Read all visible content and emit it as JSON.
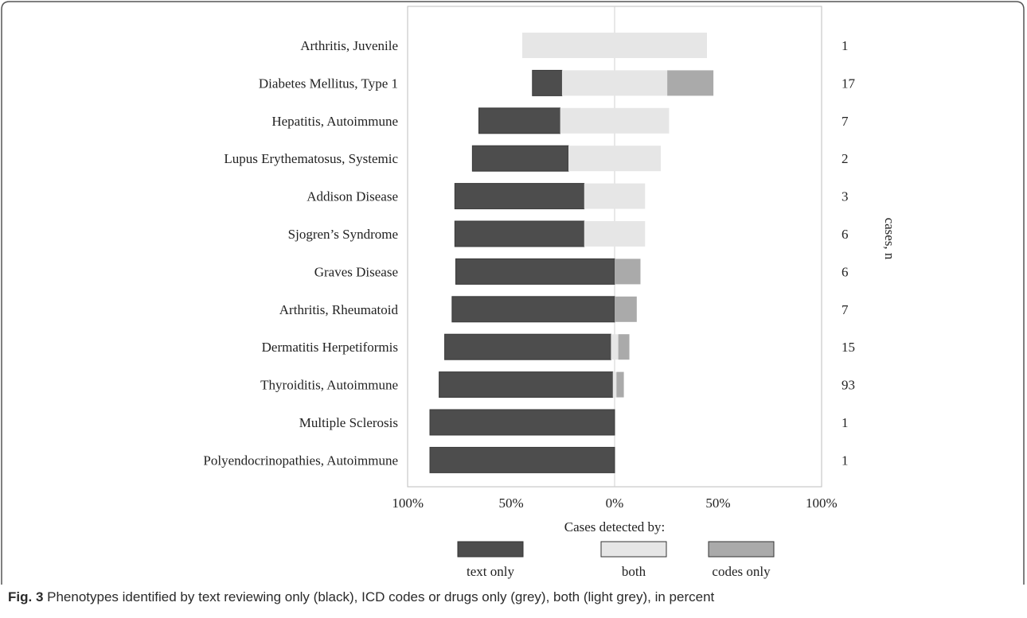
{
  "chart_data": {
    "type": "bar",
    "orientation": "horizontal",
    "stacking": "diverging",
    "categories": [
      "Arthritis, Juvenile",
      "Diabetes Mellitus, Type 1",
      "Hepatitis, Autoimmune",
      "Lupus Erythematosus, Systemic",
      "Addison Disease",
      "Sjogren’s Syndrome",
      "Graves Disease",
      "Arthritis, Rheumatoid",
      "Dermatitis Herpetiformis",
      "Thyroiditis, Autoimmune",
      "Multiple Sclerosis",
      "Polyendocrinopathies, Autoimmune"
    ],
    "series": [
      {
        "name": "text only",
        "color": "#4d4d4d",
        "values": [
          0,
          16,
          44,
          52,
          70,
          70,
          86,
          88,
          90,
          94,
          100,
          100
        ]
      },
      {
        "name": "both",
        "color": "#e6e6e6",
        "values": [
          100,
          57,
          59,
          50,
          33,
          33,
          0,
          0,
          4,
          2,
          0,
          0
        ]
      },
      {
        "name": "codes only",
        "color": "#aaaaaa",
        "values": [
          0,
          25,
          0,
          0,
          0,
          0,
          14,
          12,
          6,
          4,
          0,
          0
        ]
      }
    ],
    "n_label": "cases, n",
    "n_values": [
      "1",
      "17",
      "7",
      "2",
      "3",
      "6",
      "6",
      "7",
      "15",
      "93",
      "1",
      "1"
    ],
    "x_ticks": [
      "100%",
      "50%",
      "0%",
      "50%",
      "100%"
    ],
    "x_tick_values": [
      -100,
      -50,
      0,
      50,
      100
    ],
    "xlim": [
      -100,
      100
    ],
    "xlabel": "",
    "ylabel": "",
    "legend_title": "Cases detected by:",
    "legend_position": "bottom",
    "grid": false
  },
  "caption": {
    "label": "Fig. 3",
    "text": " Phenotypes identified by text reviewing only (black), ICD codes or drugs only (grey), both (light grey), in percent"
  }
}
